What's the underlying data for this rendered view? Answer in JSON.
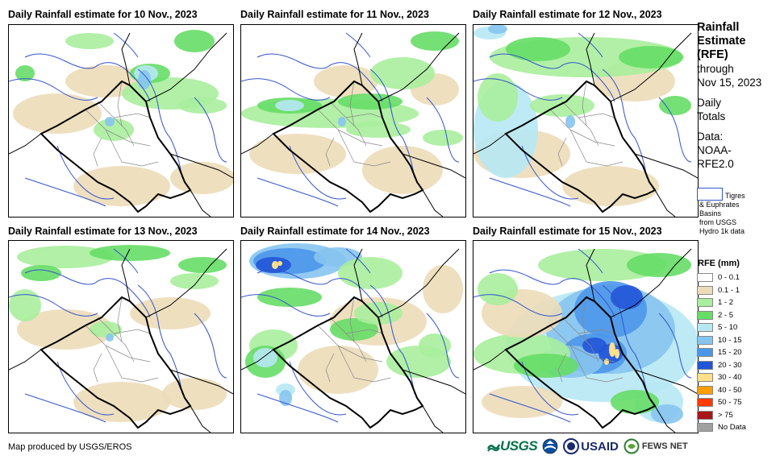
{
  "panels": [
    {
      "title": "Daily Rainfall estimate for 10 Nov., 2023",
      "label": "10 Nov., 2023"
    },
    {
      "title": "Daily Rainfall estimate for 11 Nov., 2023",
      "label": "11 Nov., 2023"
    },
    {
      "title": "Daily Rainfall estimate for 12 Nov., 2023",
      "label": "12 Nov., 2023"
    },
    {
      "title": "Daily Rainfall estimate for 13 Nov., 2023",
      "label": "13 Nov., 2023"
    },
    {
      "title": "Daily Rainfall estimate for 14 Nov., 2023",
      "label": "14 Nov., 2023"
    },
    {
      "title": "Daily Rainfall estimate for 15 Nov., 2023",
      "label": "15 Nov., 2023"
    }
  ],
  "side": {
    "title_line1": "Rainfall",
    "title_line2": "Estimate",
    "title_line3": "(RFE)",
    "through": "through",
    "date": "Nov 15, 2023",
    "daily1": "Daily",
    "daily2": "Totals",
    "data1": "Data:",
    "data2": "NOAA-",
    "data3": "RFE2.0"
  },
  "basins": {
    "line1": "Tigres",
    "line2": "& Euphrates",
    "line3": "Basins",
    "line4": "from USGS",
    "line5": "Hydro 1k data"
  },
  "legend": {
    "title": "RFE (mm)",
    "items": [
      {
        "label": "0 - 0.1",
        "color": "#ffffff"
      },
      {
        "label": "0.1 - 1",
        "color": "#ecdcb8"
      },
      {
        "label": "1 - 2",
        "color": "#a8ee9c"
      },
      {
        "label": "2 - 5",
        "color": "#66dd66"
      },
      {
        "label": "5 - 10",
        "color": "#b6e8f4"
      },
      {
        "label": "10 - 15",
        "color": "#86c4f0"
      },
      {
        "label": "15 - 20",
        "color": "#4c96ea"
      },
      {
        "label": "20 - 30",
        "color": "#2255d8"
      },
      {
        "label": "30 - 40",
        "color": "#ffe08a"
      },
      {
        "label": "40 - 50",
        "color": "#ffa000"
      },
      {
        "label": "50 - 75",
        "color": "#ff3a00"
      },
      {
        "label": "> 75",
        "color": "#a8161a"
      },
      {
        "label": "No Data",
        "color": "#a0a0a0"
      }
    ]
  },
  "credit": "Map produced by USGS/EROS",
  "logos": {
    "usgs": "USGS",
    "usaid": "USAID",
    "fews": "FEWS NET"
  },
  "colors": {
    "river": "#3355cc",
    "border": "#000000",
    "admin": "#888888"
  }
}
